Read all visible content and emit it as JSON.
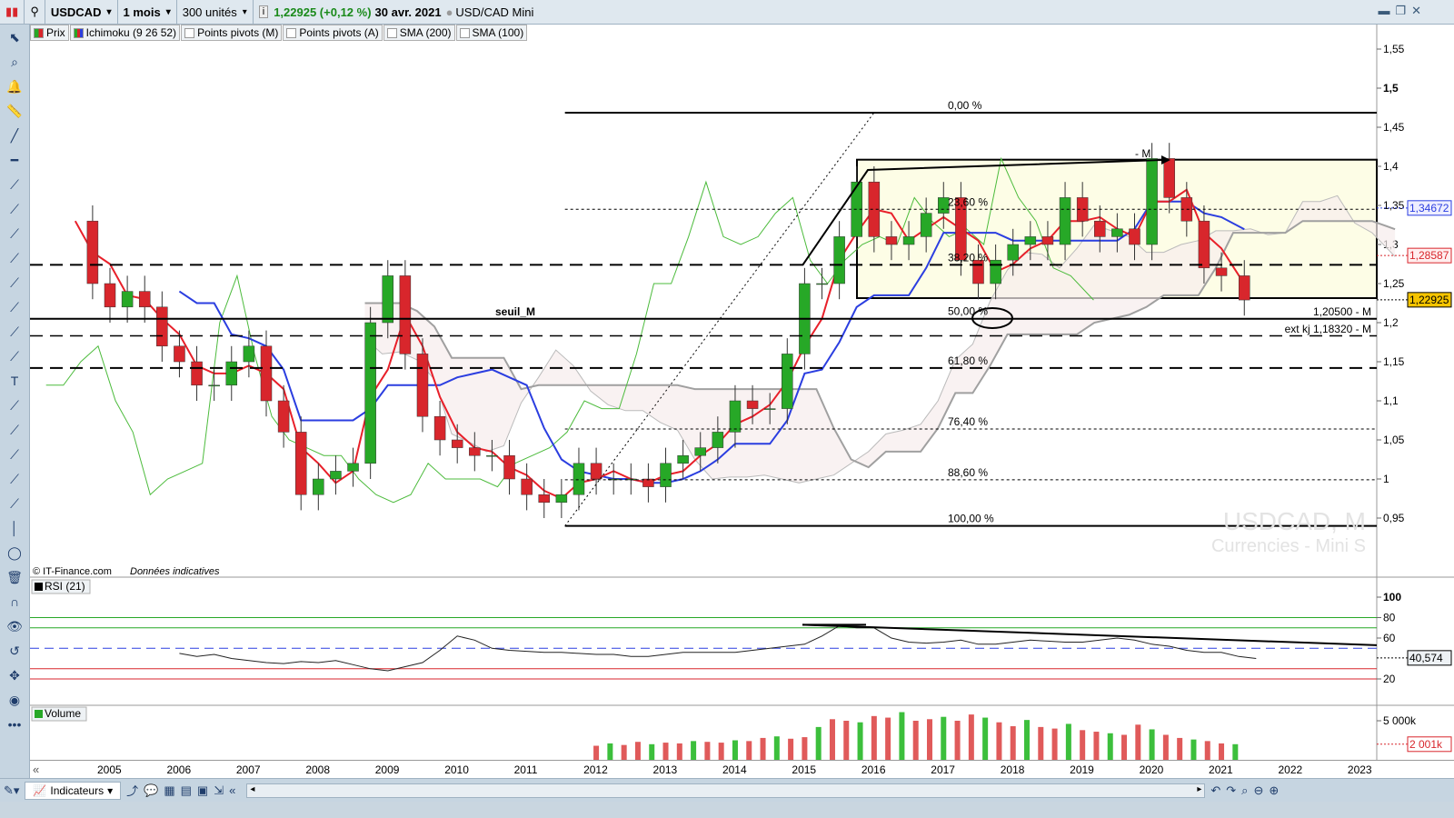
{
  "toolbar": {
    "symbol": "USDCAD",
    "period": "1 mois",
    "units": "300 unités",
    "last_price": "1,22925 (+0,12 %)",
    "date": "30 avr. 2021",
    "instrument": "USD/CAD Mini"
  },
  "legend": [
    {
      "label": "Prix",
      "checked": true
    },
    {
      "label": "Ichimoku (9 26 52)",
      "checked": true
    },
    {
      "label": "Points pivots (M)",
      "checked": false
    },
    {
      "label": "Points pivots (A)",
      "checked": false
    },
    {
      "label": "SMA (200)",
      "checked": false
    },
    {
      "label": "SMA (100)",
      "checked": false
    }
  ],
  "left_tools": [
    "cursor-icon",
    "zoom-icon",
    "alert-bell-icon",
    "ruler-icon",
    "trendline-icon",
    "horizontal-line-icon",
    "parallel-lines-icon",
    "ray-icon",
    "extended-line-icon",
    "channel-icon",
    "channel2-icon",
    "fibonacci-fan-icon",
    "fibonacci-icon",
    "polyline-icon",
    "text-icon",
    "text-box-icon",
    "fibo-retracement-icon",
    "fibo-extension-icon",
    "elliott-wave-icon",
    "pattern-icon",
    "vertical-line-icon",
    "ellipse-icon",
    "trash-icon",
    "magnet-icon",
    "eye-icon",
    "undo-icon",
    "move-icon",
    "color-wheel-icon",
    "more-icon"
  ],
  "colors": {
    "up": "#27a827",
    "down": "#d8262c",
    "tenkan": "#e8202a",
    "kijun": "#2b3ee0",
    "chikou": "#4cbb3c",
    "senkou": "#a0a0a0",
    "rect_fill": "#fdfde6",
    "accent_price": "#f5c400"
  },
  "watermark": {
    "line1": "USDCAD, M",
    "line2": "Currencies - Mini S"
  },
  "copyright": "© IT-Finance.com",
  "disclaimer": "Données indicatives",
  "annotations": {
    "seuil": "seuil_M",
    "level1": "1,20500 - M",
    "level2": "ext kj 1,18320 - M",
    "m_label": "- M"
  },
  "fibonacci": [
    {
      "label": "0,00 %",
      "value": 1.4686
    },
    {
      "label": "23,60 %",
      "value": 1.345
    },
    {
      "label": "38,20 %",
      "value": 1.274
    },
    {
      "label": "50,00 %",
      "value": 1.205
    },
    {
      "label": "61,80 %",
      "value": 1.142
    },
    {
      "label": "76,40 %",
      "value": 1.064
    },
    {
      "label": "88,60 %",
      "value": 0.999
    },
    {
      "label": "100,00 %",
      "value": 0.94
    }
  ],
  "price_axis": {
    "ticks": [
      "1,55",
      "1,5",
      "1,45",
      "1,4",
      "1,35",
      "1,3",
      "1,25",
      "1,2",
      "1,15",
      "1,1",
      "1,05",
      "1",
      "0,95"
    ],
    "current": "1,22925",
    "kijun_value": "1,34672",
    "tenkan_value": "1,28587"
  },
  "rsi": {
    "label": "RSI (21)",
    "ticks": [
      "100",
      "80",
      "60",
      "20"
    ],
    "current": "40,574"
  },
  "volume": {
    "label": "Volume",
    "ticks": [
      "5 000k"
    ],
    "current": "2 001k"
  },
  "bottom": {
    "indicators_label": "Indicateurs"
  },
  "chart_data": {
    "type": "candlestick",
    "x_ticks": [
      "2005",
      "2006",
      "2007",
      "2008",
      "2009",
      "2010",
      "2011",
      "2012",
      "2013",
      "2014",
      "2015",
      "2016",
      "2017",
      "2018",
      "2019",
      "2020",
      "2021",
      "2022",
      "2023"
    ],
    "ylim": [
      0.92,
      1.57
    ],
    "dates": [
      2004.5,
      2004.75,
      2005,
      2005.25,
      2005.5,
      2005.75,
      2006,
      2006.25,
      2006.5,
      2006.75,
      2007,
      2007.25,
      2007.5,
      2007.75,
      2008,
      2008.25,
      2008.5,
      2008.75,
      2009,
      2009.25,
      2009.5,
      2009.75,
      2010,
      2010.25,
      2010.5,
      2010.75,
      2011,
      2011.25,
      2011.5,
      2011.75,
      2012,
      2012.25,
      2012.5,
      2012.75,
      2013,
      2013.25,
      2013.5,
      2013.75,
      2014,
      2014.25,
      2014.5,
      2014.75,
      2015,
      2015.25,
      2015.5,
      2015.75,
      2016,
      2016.25,
      2016.5,
      2016.75,
      2017,
      2017.25,
      2017.5,
      2017.75,
      2018,
      2018.25,
      2018.5,
      2018.75,
      2019,
      2019.25,
      2019.5,
      2019.75,
      2020,
      2020.25,
      2020.5,
      2020.75,
      2021,
      2021.33
    ],
    "closes": [
      1.33,
      1.25,
      1.22,
      1.24,
      1.22,
      1.17,
      1.15,
      1.12,
      1.12,
      1.15,
      1.17,
      1.1,
      1.06,
      0.98,
      1.0,
      1.01,
      1.02,
      1.2,
      1.26,
      1.16,
      1.08,
      1.05,
      1.04,
      1.03,
      1.03,
      1.0,
      0.98,
      0.97,
      0.98,
      1.02,
      1.0,
      1.0,
      1.0,
      0.99,
      1.02,
      1.03,
      1.04,
      1.06,
      1.1,
      1.09,
      1.09,
      1.16,
      1.25,
      1.25,
      1.31,
      1.38,
      1.31,
      1.3,
      1.31,
      1.34,
      1.36,
      1.28,
      1.25,
      1.28,
      1.3,
      1.31,
      1.3,
      1.36,
      1.33,
      1.31,
      1.32,
      1.3,
      1.41,
      1.36,
      1.33,
      1.27,
      1.26,
      1.229
    ],
    "rsi_values": [
      45,
      42,
      44,
      40,
      38,
      36,
      35,
      37,
      36,
      38,
      34,
      30,
      28,
      32,
      36,
      48,
      62,
      58,
      50,
      48,
      47,
      46,
      46,
      45,
      44,
      44,
      42,
      42,
      44,
      46,
      46,
      46,
      46,
      48,
      50,
      52,
      54,
      62,
      72,
      70,
      70,
      60,
      56,
      55,
      56,
      58,
      54,
      54,
      56,
      58,
      57,
      56,
      56,
      58,
      60,
      58,
      54,
      52,
      48,
      46,
      46,
      42,
      40
    ],
    "rsi_start": 2006.0,
    "volume_start": 2012.0,
    "volume_values": [
      1800,
      2100,
      1900,
      2300,
      2000,
      2200,
      2100,
      2400,
      2300,
      2200,
      2500,
      2400,
      2800,
      3000,
      2700,
      2900,
      4200,
      5200,
      5000,
      4800,
      5600,
      5400,
      6100,
      5000,
      5200,
      5500,
      5000,
      5800,
      5400,
      4800,
      4300,
      5100,
      4200,
      4000,
      4600,
      3800,
      3600,
      3400,
      3200,
      4500,
      3900,
      3200,
      2800,
      2600,
      2400,
      2100,
      2001
    ]
  }
}
